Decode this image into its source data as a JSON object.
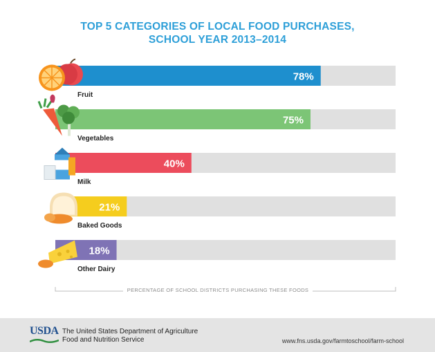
{
  "title_line1": "TOP 5 CATEGORIES OF LOCAL FOOD PURCHASES,",
  "title_line2": "SCHOOL YEAR 2013–2014",
  "colors": {
    "title": "#2d9fd8",
    "track": "#e0e0e0",
    "fruit": "#1e8fce",
    "vegetables": "#7cc576",
    "milk": "#ec4c5c",
    "baked_goods": "#f5cd1e",
    "other_dairy": "#7f73b5"
  },
  "chart_data": {
    "type": "bar",
    "orientation": "horizontal",
    "categories": [
      "Fruit",
      "Vegetables",
      "Milk",
      "Baked Goods",
      "Other Dairy"
    ],
    "values": [
      78,
      75,
      40,
      21,
      18
    ],
    "value_labels": [
      "78%",
      "75%",
      "40%",
      "21%",
      "18%"
    ],
    "icons": [
      "fruit-icon",
      "vegetables-icon",
      "milk-icon",
      "baked-goods-icon",
      "cheese-icon"
    ],
    "xlabel": "PERCENTAGE OF SCHOOL DISTRICTS PURCHASING THESE FOODS",
    "xlim": [
      0,
      100
    ],
    "grid": false
  },
  "footer": {
    "logo_text": "USDA",
    "agency_line1": "The United States Department of Agriculture",
    "agency_line2": "Food and Nutrition Service",
    "url": "www.fns.usda.gov/farmtoschool/farm-school"
  }
}
